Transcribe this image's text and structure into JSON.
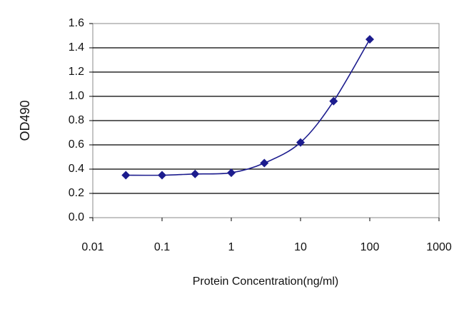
{
  "chart_data": {
    "type": "line",
    "x_label": "Protein Concentration(ng/ml)",
    "y_label": "OD490",
    "x": [
      0.03,
      0.1,
      0.3,
      1,
      3,
      10,
      30,
      100
    ],
    "series": [
      {
        "color": "#1c1c8e",
        "values": [
          0.35,
          0.35,
          0.36,
          0.37,
          0.45,
          0.62,
          0.96,
          1.47
        ]
      }
    ],
    "xscale": "log",
    "xlim": [
      0.01,
      1000
    ],
    "xticks": [
      0.01,
      0.1,
      1,
      10,
      100,
      1000
    ],
    "ylim": [
      0,
      1.6
    ],
    "yticks": [
      {
        "value": 0,
        "label": "0.0"
      },
      0.2,
      0.4,
      0.6,
      0.8,
      {
        "value": 1,
        "label": "1.0"
      },
      1.2,
      1.4,
      1.6
    ],
    "grid": true
  }
}
